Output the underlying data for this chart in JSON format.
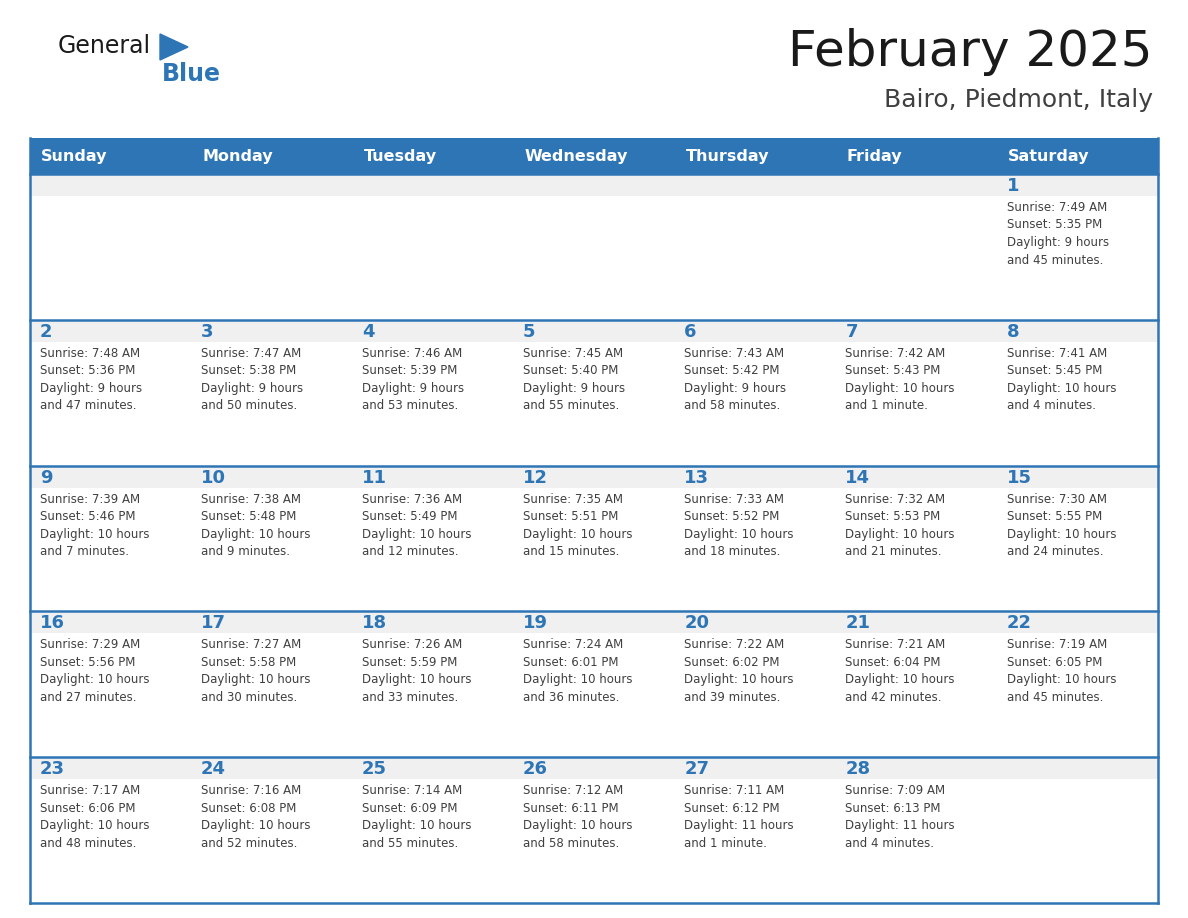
{
  "title": "February 2025",
  "subtitle": "Bairo, Piedmont, Italy",
  "days_of_week": [
    "Sunday",
    "Monday",
    "Tuesday",
    "Wednesday",
    "Thursday",
    "Friday",
    "Saturday"
  ],
  "header_bg": "#2E75B6",
  "header_text": "#FFFFFF",
  "cell_bg_white": "#FFFFFF",
  "cell_bg_gray": "#F0F0F0",
  "border_color": "#2E75B6",
  "day_num_color": "#2E75B6",
  "cell_text_color": "#404040",
  "title_color": "#1a1a1a",
  "subtitle_color": "#404040",
  "logo_general_color": "#1a1a1a",
  "logo_blue_color": "#2E75B6",
  "weeks": [
    [
      {
        "day": null,
        "text": ""
      },
      {
        "day": null,
        "text": ""
      },
      {
        "day": null,
        "text": ""
      },
      {
        "day": null,
        "text": ""
      },
      {
        "day": null,
        "text": ""
      },
      {
        "day": null,
        "text": ""
      },
      {
        "day": 1,
        "text": "Sunrise: 7:49 AM\nSunset: 5:35 PM\nDaylight: 9 hours\nand 45 minutes."
      }
    ],
    [
      {
        "day": 2,
        "text": "Sunrise: 7:48 AM\nSunset: 5:36 PM\nDaylight: 9 hours\nand 47 minutes."
      },
      {
        "day": 3,
        "text": "Sunrise: 7:47 AM\nSunset: 5:38 PM\nDaylight: 9 hours\nand 50 minutes."
      },
      {
        "day": 4,
        "text": "Sunrise: 7:46 AM\nSunset: 5:39 PM\nDaylight: 9 hours\nand 53 minutes."
      },
      {
        "day": 5,
        "text": "Sunrise: 7:45 AM\nSunset: 5:40 PM\nDaylight: 9 hours\nand 55 minutes."
      },
      {
        "day": 6,
        "text": "Sunrise: 7:43 AM\nSunset: 5:42 PM\nDaylight: 9 hours\nand 58 minutes."
      },
      {
        "day": 7,
        "text": "Sunrise: 7:42 AM\nSunset: 5:43 PM\nDaylight: 10 hours\nand 1 minute."
      },
      {
        "day": 8,
        "text": "Sunrise: 7:41 AM\nSunset: 5:45 PM\nDaylight: 10 hours\nand 4 minutes."
      }
    ],
    [
      {
        "day": 9,
        "text": "Sunrise: 7:39 AM\nSunset: 5:46 PM\nDaylight: 10 hours\nand 7 minutes."
      },
      {
        "day": 10,
        "text": "Sunrise: 7:38 AM\nSunset: 5:48 PM\nDaylight: 10 hours\nand 9 minutes."
      },
      {
        "day": 11,
        "text": "Sunrise: 7:36 AM\nSunset: 5:49 PM\nDaylight: 10 hours\nand 12 minutes."
      },
      {
        "day": 12,
        "text": "Sunrise: 7:35 AM\nSunset: 5:51 PM\nDaylight: 10 hours\nand 15 minutes."
      },
      {
        "day": 13,
        "text": "Sunrise: 7:33 AM\nSunset: 5:52 PM\nDaylight: 10 hours\nand 18 minutes."
      },
      {
        "day": 14,
        "text": "Sunrise: 7:32 AM\nSunset: 5:53 PM\nDaylight: 10 hours\nand 21 minutes."
      },
      {
        "day": 15,
        "text": "Sunrise: 7:30 AM\nSunset: 5:55 PM\nDaylight: 10 hours\nand 24 minutes."
      }
    ],
    [
      {
        "day": 16,
        "text": "Sunrise: 7:29 AM\nSunset: 5:56 PM\nDaylight: 10 hours\nand 27 minutes."
      },
      {
        "day": 17,
        "text": "Sunrise: 7:27 AM\nSunset: 5:58 PM\nDaylight: 10 hours\nand 30 minutes."
      },
      {
        "day": 18,
        "text": "Sunrise: 7:26 AM\nSunset: 5:59 PM\nDaylight: 10 hours\nand 33 minutes."
      },
      {
        "day": 19,
        "text": "Sunrise: 7:24 AM\nSunset: 6:01 PM\nDaylight: 10 hours\nand 36 minutes."
      },
      {
        "day": 20,
        "text": "Sunrise: 7:22 AM\nSunset: 6:02 PM\nDaylight: 10 hours\nand 39 minutes."
      },
      {
        "day": 21,
        "text": "Sunrise: 7:21 AM\nSunset: 6:04 PM\nDaylight: 10 hours\nand 42 minutes."
      },
      {
        "day": 22,
        "text": "Sunrise: 7:19 AM\nSunset: 6:05 PM\nDaylight: 10 hours\nand 45 minutes."
      }
    ],
    [
      {
        "day": 23,
        "text": "Sunrise: 7:17 AM\nSunset: 6:06 PM\nDaylight: 10 hours\nand 48 minutes."
      },
      {
        "day": 24,
        "text": "Sunrise: 7:16 AM\nSunset: 6:08 PM\nDaylight: 10 hours\nand 52 minutes."
      },
      {
        "day": 25,
        "text": "Sunrise: 7:14 AM\nSunset: 6:09 PM\nDaylight: 10 hours\nand 55 minutes."
      },
      {
        "day": 26,
        "text": "Sunrise: 7:12 AM\nSunset: 6:11 PM\nDaylight: 10 hours\nand 58 minutes."
      },
      {
        "day": 27,
        "text": "Sunrise: 7:11 AM\nSunset: 6:12 PM\nDaylight: 11 hours\nand 1 minute."
      },
      {
        "day": 28,
        "text": "Sunrise: 7:09 AM\nSunset: 6:13 PM\nDaylight: 11 hours\nand 4 minutes."
      },
      {
        "day": null,
        "text": ""
      }
    ]
  ]
}
